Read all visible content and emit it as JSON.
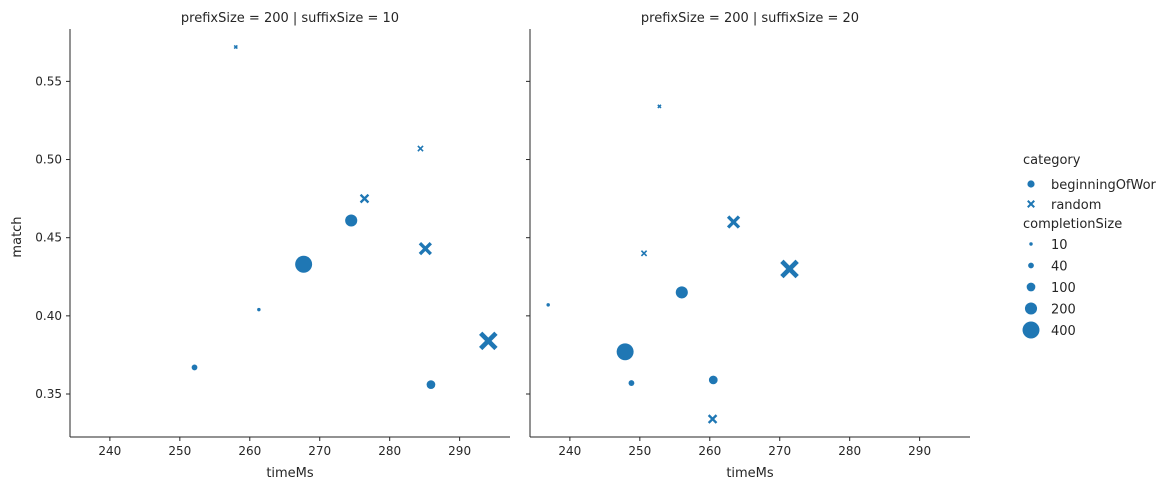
{
  "chart_data": [
    {
      "type": "scatter",
      "title": "prefixSize = 200 | suffixSize = 10",
      "xlabel": "timeMs",
      "ylabel": "match",
      "xlim": [
        234.3,
        297.2
      ],
      "ylim": [
        0.3225,
        0.5835
      ],
      "xticks": [
        "240",
        "250",
        "260",
        "270",
        "280",
        "290"
      ],
      "yticks": [
        "0.35",
        "0.40",
        "0.45",
        "0.50",
        "0.55"
      ],
      "grid": false,
      "points": [
        {
          "x": 252.1,
          "y": 0.367,
          "category": "beginningOfWord",
          "completionSize": 40
        },
        {
          "x": 261.3,
          "y": 0.404,
          "category": "beginningOfWord",
          "completionSize": 10
        },
        {
          "x": 267.7,
          "y": 0.433,
          "category": "beginningOfWord",
          "completionSize": 400
        },
        {
          "x": 274.5,
          "y": 0.461,
          "category": "beginningOfWord",
          "completionSize": 200
        },
        {
          "x": 285.9,
          "y": 0.356,
          "category": "beginningOfWord",
          "completionSize": 100
        },
        {
          "x": 258.0,
          "y": 0.572,
          "category": "random",
          "completionSize": 10
        },
        {
          "x": 276.4,
          "y": 0.475,
          "category": "random",
          "completionSize": 100
        },
        {
          "x": 284.4,
          "y": 0.507,
          "category": "random",
          "completionSize": 40
        },
        {
          "x": 285.1,
          "y": 0.443,
          "category": "random",
          "completionSize": 200
        },
        {
          "x": 294.1,
          "y": 0.384,
          "category": "random",
          "completionSize": 400
        }
      ]
    },
    {
      "type": "scatter",
      "title": "prefixSize = 200 | suffixSize = 20",
      "xlabel": "timeMs",
      "ylabel": "",
      "xlim": [
        234.3,
        297.2
      ],
      "ylim": [
        0.3225,
        0.5835
      ],
      "xticks": [
        "240",
        "250",
        "260",
        "270",
        "280",
        "290"
      ],
      "yticks": [],
      "grid": false,
      "points": [
        {
          "x": 236.9,
          "y": 0.407,
          "category": "beginningOfWord",
          "completionSize": 10
        },
        {
          "x": 247.9,
          "y": 0.377,
          "category": "beginningOfWord",
          "completionSize": 400
        },
        {
          "x": 248.8,
          "y": 0.357,
          "category": "beginningOfWord",
          "completionSize": 40
        },
        {
          "x": 256.0,
          "y": 0.415,
          "category": "beginningOfWord",
          "completionSize": 200
        },
        {
          "x": 260.5,
          "y": 0.359,
          "category": "beginningOfWord",
          "completionSize": 100
        },
        {
          "x": 252.8,
          "y": 0.534,
          "category": "random",
          "completionSize": 10
        },
        {
          "x": 250.6,
          "y": 0.44,
          "category": "random",
          "completionSize": 40
        },
        {
          "x": 260.4,
          "y": 0.334,
          "category": "random",
          "completionSize": 100
        },
        {
          "x": 263.4,
          "y": 0.46,
          "category": "random",
          "completionSize": 200
        },
        {
          "x": 271.4,
          "y": 0.43,
          "category": "random",
          "completionSize": 400
        }
      ]
    }
  ],
  "legend": {
    "placement": "right",
    "category_title": "category",
    "categories": [
      {
        "label": "beginningOfWord",
        "marker": "circle"
      },
      {
        "label": "random",
        "marker": "x"
      }
    ],
    "size_title": "completionSize",
    "sizes": [
      {
        "label": "10",
        "value": 10
      },
      {
        "label": "40",
        "value": 40
      },
      {
        "label": "100",
        "value": 100
      },
      {
        "label": "200",
        "value": 200
      },
      {
        "label": "400",
        "value": 400
      }
    ]
  },
  "colors": {
    "marker": "#1f77b4",
    "axis": "#262626"
  }
}
